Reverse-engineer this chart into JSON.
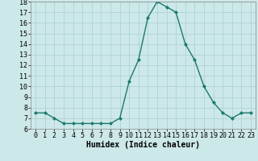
{
  "x": [
    0,
    1,
    2,
    3,
    4,
    5,
    6,
    7,
    8,
    9,
    10,
    11,
    12,
    13,
    14,
    15,
    16,
    17,
    18,
    19,
    20,
    21,
    22,
    23
  ],
  "y": [
    7.5,
    7.5,
    7.0,
    6.5,
    6.5,
    6.5,
    6.5,
    6.5,
    6.5,
    7.0,
    10.5,
    12.5,
    16.5,
    18.0,
    17.5,
    17.0,
    14.0,
    12.5,
    10.0,
    8.5,
    7.5,
    7.0,
    7.5,
    7.5
  ],
  "xlabel": "Humidex (Indice chaleur)",
  "line_color": "#1a7a6e",
  "marker_color": "#1a7a6e",
  "bg_color": "#cde8e8",
  "grid_color": "#aacfcf",
  "ylim": [
    6,
    18
  ],
  "xlim": [
    -0.5,
    23.5
  ],
  "yticks": [
    6,
    7,
    8,
    9,
    10,
    11,
    12,
    13,
    14,
    15,
    16,
    17,
    18
  ],
  "xticks": [
    0,
    1,
    2,
    3,
    4,
    5,
    6,
    7,
    8,
    9,
    10,
    11,
    12,
    13,
    14,
    15,
    16,
    17,
    18,
    19,
    20,
    21,
    22,
    23
  ],
  "tick_fontsize": 6.0,
  "xlabel_fontsize": 7.0
}
